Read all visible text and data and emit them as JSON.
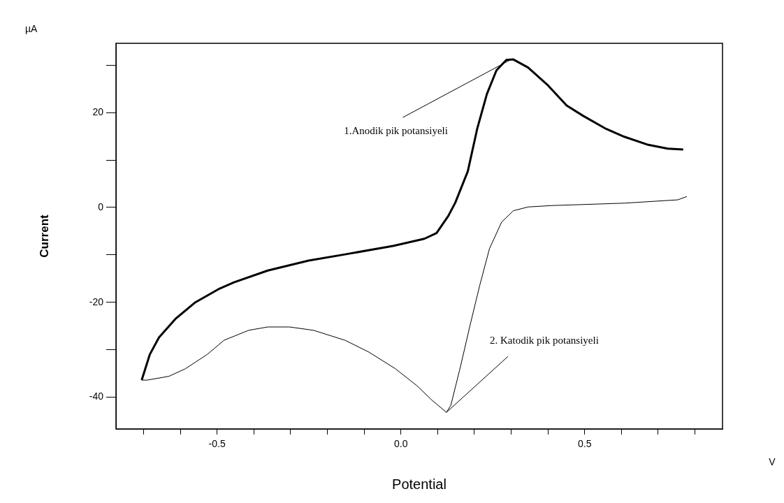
{
  "chart_data": {
    "type": "line",
    "xlabel": "Potential",
    "ylabel": "Current",
    "xlim": [
      -0.775,
      0.875
    ],
    "ylim": [
      -46.7,
      34.6
    ],
    "xticks": [
      {
        "value": -0.7,
        "label": null
      },
      {
        "value": -0.6,
        "label": null
      },
      {
        "value": -0.5,
        "label": "-0.5"
      },
      {
        "value": -0.4,
        "label": null
      },
      {
        "value": -0.3,
        "label": null
      },
      {
        "value": -0.2,
        "label": null
      },
      {
        "value": -0.1,
        "label": null
      },
      {
        "value": 0,
        "label": "0.0"
      },
      {
        "value": 0.1,
        "label": null
      },
      {
        "value": 0.2,
        "label": null
      },
      {
        "value": 0.3,
        "label": null
      },
      {
        "value": 0.4,
        "label": null
      },
      {
        "value": 0.5,
        "label": "0.5"
      },
      {
        "value": 0.6,
        "label": null
      },
      {
        "value": 0.7,
        "label": null
      },
      {
        "value": 0.8,
        "label": null
      }
    ],
    "yticks": [
      {
        "value": -40,
        "label": "-40"
      },
      {
        "value": -30,
        "label": null
      },
      {
        "value": -20,
        "label": "-20"
      },
      {
        "value": -10,
        "label": null
      },
      {
        "value": 0,
        "label": "0"
      },
      {
        "value": 10,
        "label": null
      },
      {
        "value": 20,
        "label": "20"
      },
      {
        "value": 30,
        "label": null
      }
    ],
    "series": [
      {
        "color": "#000000",
        "x": [
          -0.705,
          -0.683,
          -0.658,
          -0.612,
          -0.559,
          -0.493,
          -0.454,
          -0.362,
          -0.251,
          -0.152,
          -0.021,
          0.064,
          0.097,
          0.129,
          0.148,
          0.182,
          0.208,
          0.234,
          0.26,
          0.287,
          0.306,
          0.346,
          0.398,
          0.451,
          0.496,
          0.555,
          0.608,
          0.673,
          0.726,
          0.768
        ],
        "values": [
          -36.4,
          -31,
          -27.4,
          -23.4,
          -20,
          -17.1,
          -15.8,
          -13.3,
          -11.2,
          -9.9,
          -8.1,
          -6.6,
          -5.4,
          -1.8,
          1,
          7.6,
          16.7,
          23.9,
          28.9,
          31.1,
          31.2,
          29.5,
          25.9,
          21.5,
          19.3,
          16.7,
          14.9,
          13.2,
          12.4,
          12.2
        ]
      },
      {
        "color": "#000000",
        "x": [
          0.778,
          0.753,
          0.608,
          0.411,
          0.346,
          0.306,
          0.274,
          0.241,
          0.215,
          0.188,
          0.162,
          0.136,
          0.124,
          0.084,
          0.044,
          -0.015,
          -0.087,
          -0.152,
          -0.238,
          -0.303,
          -0.362,
          -0.414,
          -0.481,
          -0.527,
          -0.586,
          -0.631,
          -0.69,
          -0.705
        ],
        "values": [
          2.3,
          1.6,
          0.9,
          0.4,
          0.1,
          -0.7,
          -3.1,
          -8.7,
          -16.3,
          -24.9,
          -33.6,
          -41.7,
          -43.2,
          -40.6,
          -37.6,
          -34,
          -30.5,
          -28,
          -25.9,
          -25.2,
          -25.2,
          -25.9,
          -28,
          -31,
          -34,
          -35.6,
          -36.4,
          -36.4
        ]
      }
    ],
    "annotations": [
      {
        "text": "1.Anodik pik potansiyeli",
        "x": 0.3,
        "y": 31.2
      },
      {
        "text": "2. Katodik pik potansiyeli",
        "x": 0.124,
        "y": -43.2
      },
      "µA",
      "V"
    ],
    "grid": false,
    "legend": false,
    "marker": "none",
    "line_style": "solid"
  }
}
